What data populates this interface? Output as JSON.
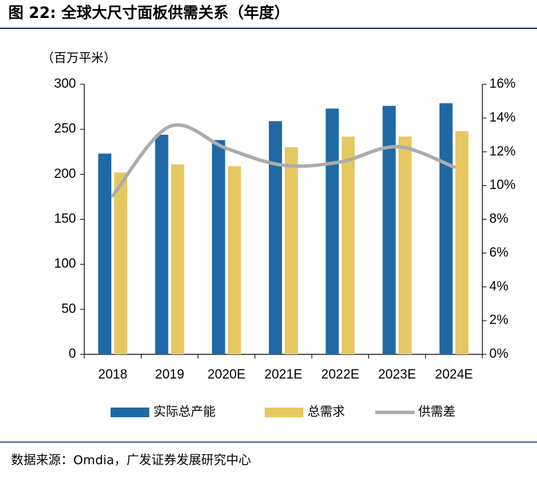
{
  "chart_data": {
    "type": "bar",
    "title": "图 22: 全球大尺寸面板供需关系（年度）",
    "y_label": "（百万平米）",
    "source": "数据来源：Omdia，广发证券发展研究中心",
    "categories": [
      "2018",
      "2019",
      "2020E",
      "2021E",
      "2022E",
      "2023E",
      "2024E"
    ],
    "series": [
      {
        "name": "实际总产能",
        "type": "bar",
        "color": "#1f6aa5",
        "values": [
          223,
          244,
          238,
          259,
          273,
          276,
          279
        ]
      },
      {
        "name": "总需求",
        "type": "bar",
        "color": "#e6c863",
        "values": [
          202,
          211,
          209,
          230,
          242,
          242,
          248
        ]
      },
      {
        "name": "供需差",
        "type": "line",
        "axis": "y2",
        "color": "#acacac",
        "values": [
          9.4,
          13.5,
          12.2,
          11.2,
          11.4,
          12.3,
          11.1
        ]
      }
    ],
    "ylim": [
      0,
      300
    ],
    "yticks": [
      0,
      50,
      100,
      150,
      200,
      250,
      300
    ],
    "y2lim": [
      0,
      16
    ],
    "y2ticks": [
      {
        "value": 0,
        "label": "0%"
      },
      {
        "value": 2,
        "label": "2%"
      },
      {
        "value": 4,
        "label": "4%"
      },
      {
        "value": 6,
        "label": "6%"
      },
      {
        "value": 8,
        "label": "8%"
      },
      {
        "value": 10,
        "label": "10%"
      },
      {
        "value": 12,
        "label": "12%"
      },
      {
        "value": 14,
        "label": "14%"
      },
      {
        "value": 16,
        "label": "16%"
      }
    ],
    "grid": false,
    "legend": "bottom"
  }
}
